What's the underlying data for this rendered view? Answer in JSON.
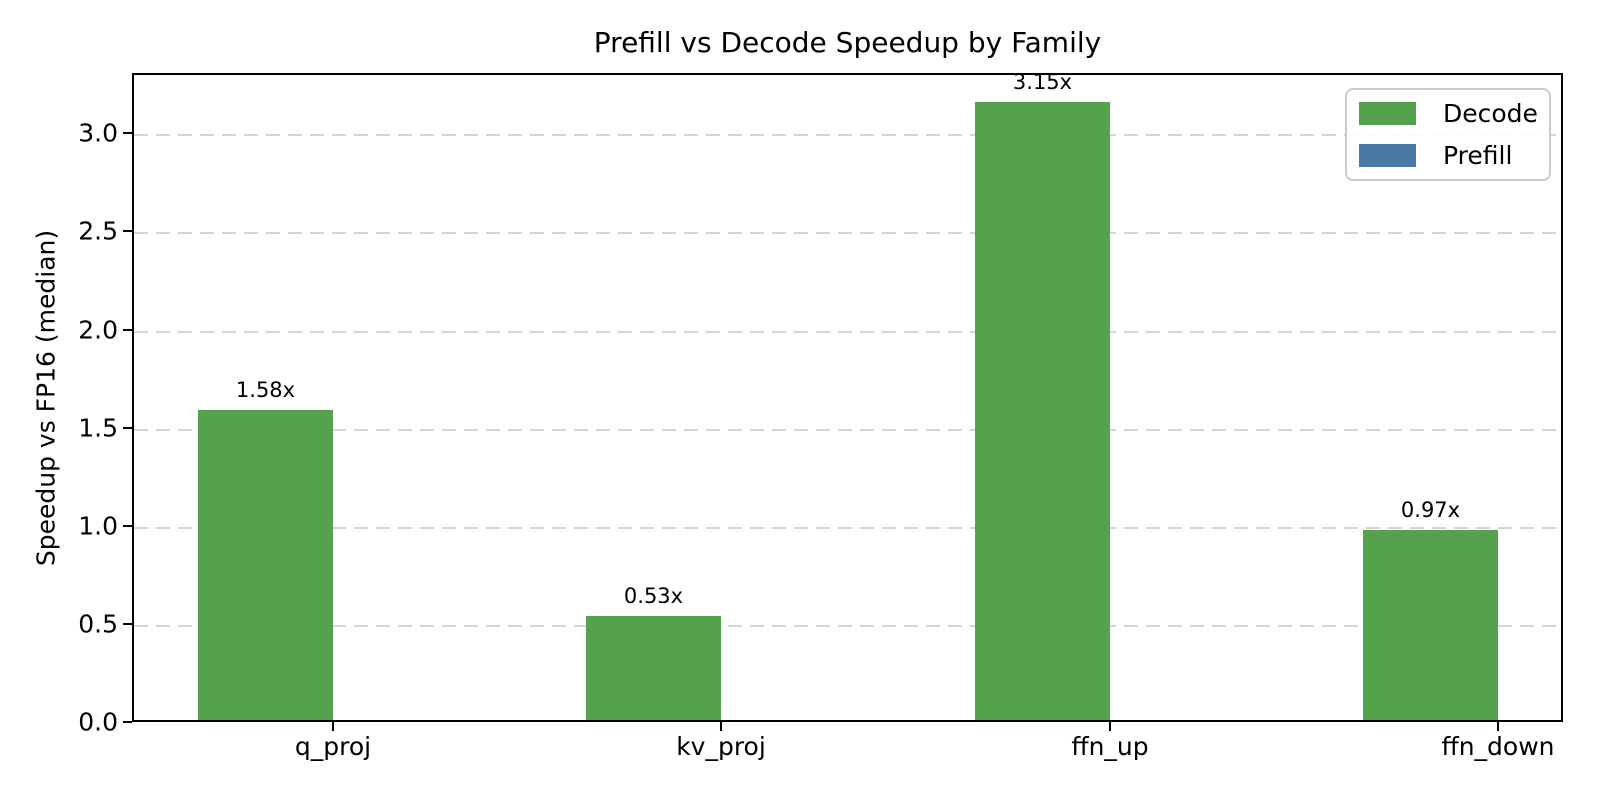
{
  "title": "Prefill vs Decode Speedup by Family",
  "chart_data": {
    "type": "bar",
    "title": "Prefill vs Decode Speedup by Family",
    "xlabel": "",
    "ylabel": "Speedup vs FP16 (median)",
    "categories": [
      "q_proj",
      "kv_proj",
      "ffn_up",
      "ffn_down"
    ],
    "series": [
      {
        "name": "Decode",
        "color": "#54a24e",
        "values": [
          1.58,
          0.53,
          3.15,
          0.97
        ],
        "bar_labels": [
          "1.58x",
          "0.53x",
          "3.15x",
          "0.97x"
        ]
      },
      {
        "name": "Prefill",
        "color": "#4a79a8",
        "values": [
          0,
          0,
          0,
          0
        ],
        "bar_labels": []
      }
    ],
    "ylim": [
      0,
      3.3075
    ],
    "yticks": [
      0,
      0.5,
      1.0,
      1.5,
      2.0,
      2.5,
      3.0
    ],
    "ytick_labels": [
      "0.0",
      "0.5",
      "1.0",
      "1.5",
      "2.0",
      "2.5",
      "3.0"
    ],
    "grid": "horizontal-dashed",
    "grid_color": "#d5d5d5",
    "legend_position": "upper right",
    "legend": [
      "Decode",
      "Prefill"
    ]
  }
}
